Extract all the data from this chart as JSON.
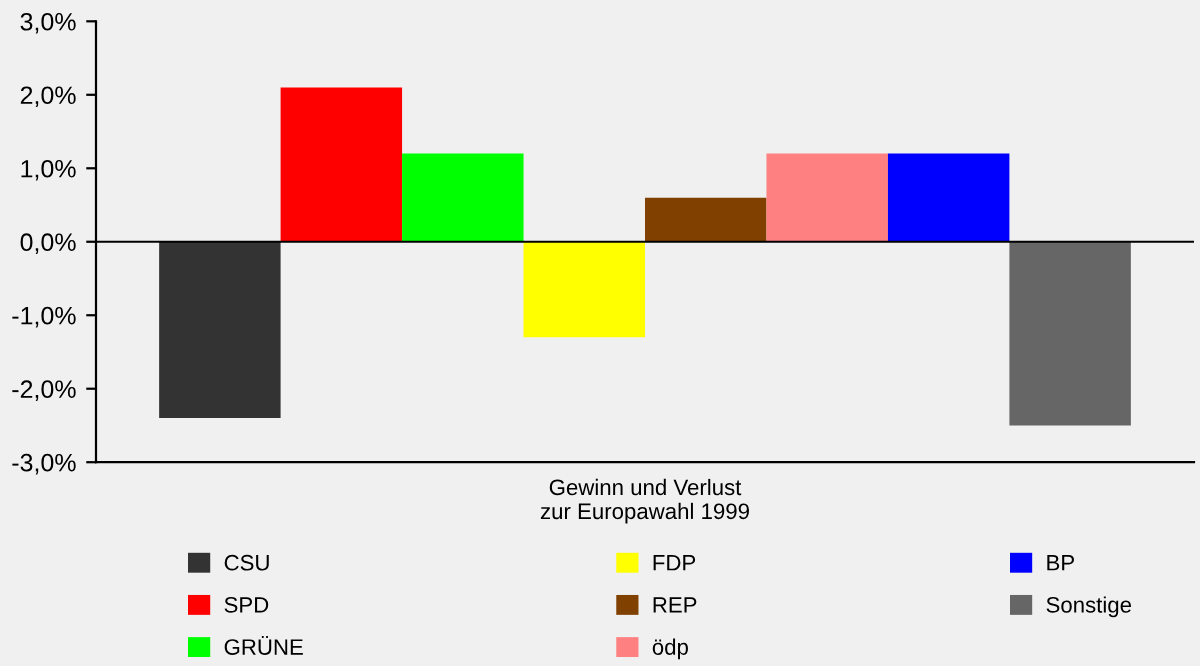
{
  "chart_data": {
    "type": "bar",
    "categories": [
      "Gewinn und Verlust\nzur Europawahl 1999"
    ],
    "series": [
      {
        "name": "CSU",
        "color": "#333333",
        "values": [
          -2.4
        ]
      },
      {
        "name": "SPD",
        "color": "#ff0000",
        "values": [
          2.1
        ]
      },
      {
        "name": "GRÜNE",
        "color": "#00ff00",
        "values": [
          1.2
        ]
      },
      {
        "name": "FDP",
        "color": "#ffff00",
        "values": [
          -1.3
        ]
      },
      {
        "name": "REP",
        "color": "#804000",
        "values": [
          0.6
        ]
      },
      {
        "name": "ödp",
        "color": "#ff8080",
        "values": [
          1.2
        ]
      },
      {
        "name": "BP",
        "color": "#0000ff",
        "values": [
          1.2
        ]
      },
      {
        "name": "Sonstige",
        "color": "#666666",
        "values": [
          -2.5
        ]
      }
    ],
    "ylim": [
      -3.0,
      3.0
    ],
    "yticks": [
      {
        "value": -3.0,
        "label": "-3,0%"
      },
      {
        "value": -2.0,
        "label": "-2,0%"
      },
      {
        "value": -1.0,
        "label": "-1,0%"
      },
      {
        "value": 0.0,
        "label": "0,0%"
      },
      {
        "value": 1.0,
        "label": "1,0%"
      },
      {
        "value": 2.0,
        "label": "2,0%"
      },
      {
        "value": 3.0,
        "label": "3,0%"
      }
    ],
    "legend": "bottom"
  }
}
